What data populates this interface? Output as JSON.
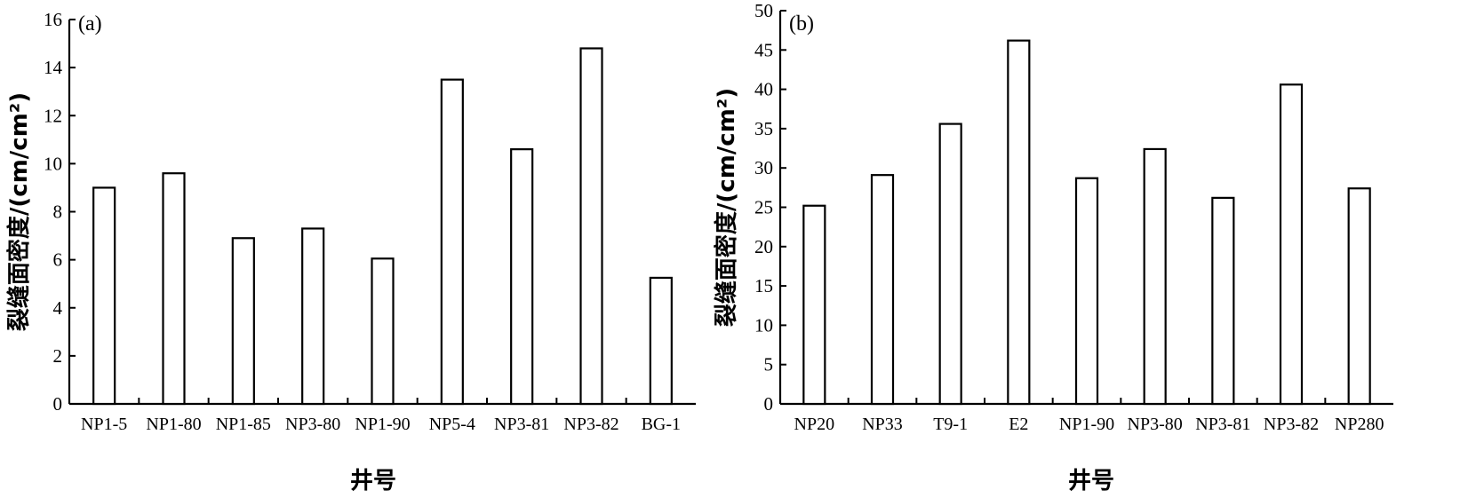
{
  "chart_data": [
    {
      "type": "bar",
      "panel_label": "(a)",
      "categories": [
        "NP1-5",
        "NP1-80",
        "NP1-85",
        "NP3-80",
        "NP1-90",
        "NP5-4",
        "NP3-81",
        "NP3-82",
        "BG-1"
      ],
      "values": [
        9.0,
        9.6,
        6.9,
        7.3,
        6.05,
        13.5,
        10.6,
        14.8,
        5.25
      ],
      "xlabel": "井号",
      "ylabel": "裂缝面密度/(cm/cm²)",
      "ylim": [
        0,
        16
      ],
      "yticks": [
        0,
        2,
        4,
        6,
        8,
        10,
        12,
        14,
        16
      ],
      "grid": false
    },
    {
      "type": "bar",
      "panel_label": "(b)",
      "categories": [
        "NP20",
        "NP33",
        "T9-1",
        "E2",
        "NP1-90",
        "NP3-80",
        "NP3-81",
        "NP3-82",
        "NP280"
      ],
      "values": [
        25.2,
        29.1,
        35.6,
        46.2,
        28.7,
        32.4,
        26.2,
        40.6,
        27.4
      ],
      "xlabel": "井号",
      "ylabel": "裂缝面密度/(cm/cm²)",
      "ylim": [
        0,
        50
      ],
      "yticks": [
        0,
        5,
        10,
        15,
        20,
        25,
        30,
        35,
        40,
        45,
        50
      ],
      "grid": false
    }
  ]
}
